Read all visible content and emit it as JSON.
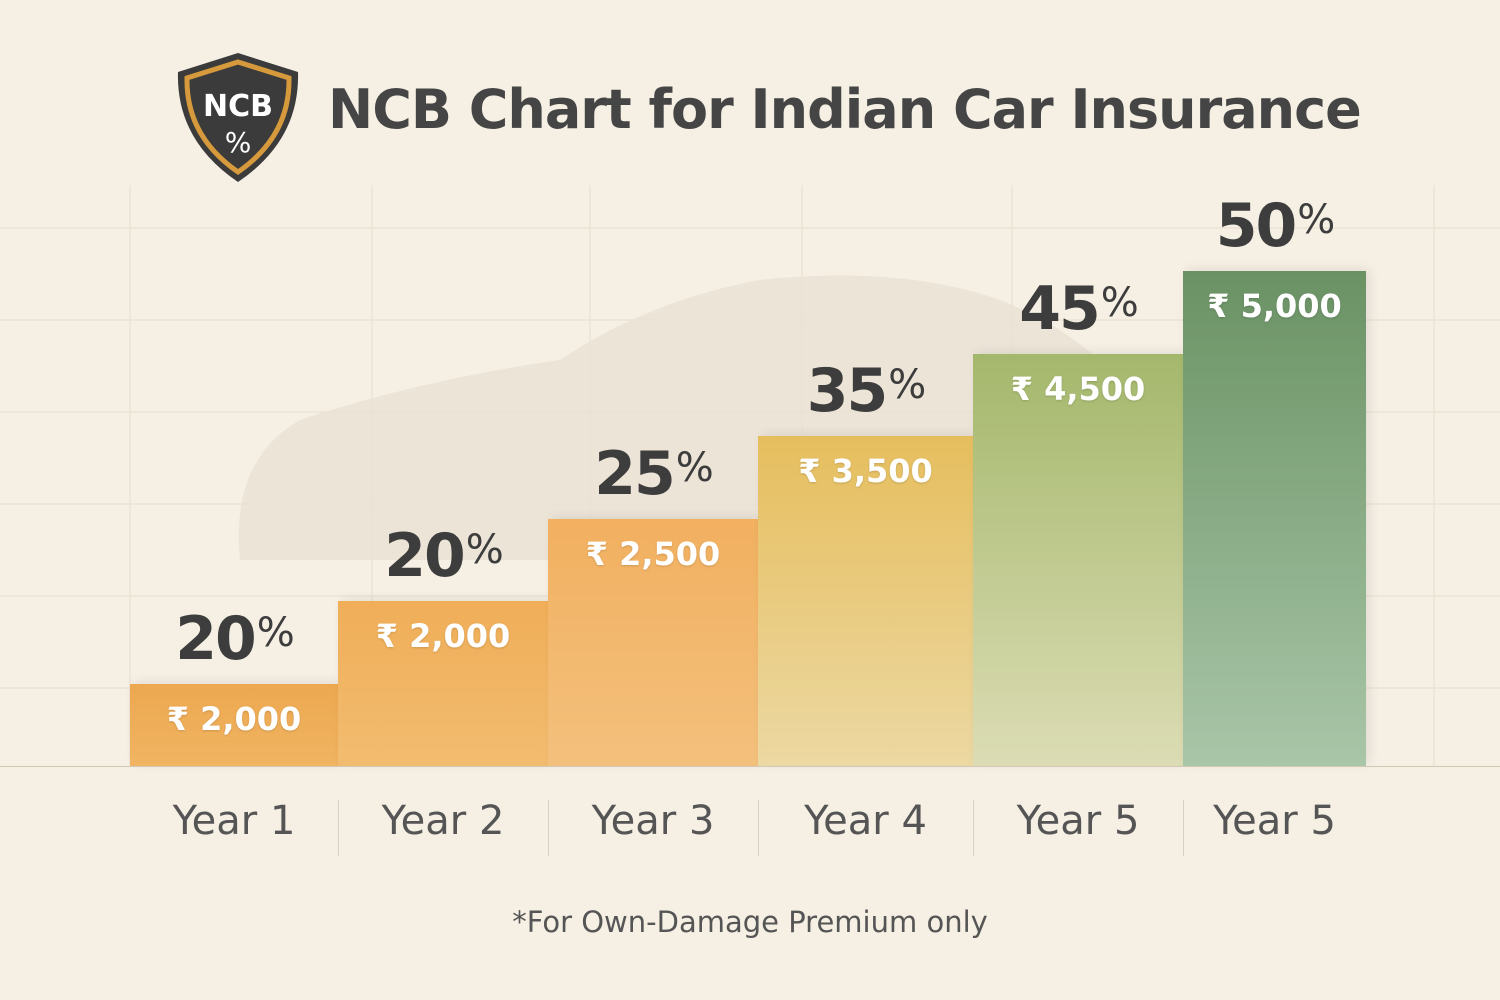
{
  "title": "NCB Chart for Indian Car Insurance",
  "logo": {
    "line1": "NCB",
    "line2": "%",
    "icon": "shield-icon"
  },
  "footnote": "*For Own-Damage Premium only",
  "colors": {
    "text": "#3d3d3d",
    "bars": [
      [
        "#eda850",
        "#f0b462"
      ],
      [
        "#f0ae58",
        "#f2bc70"
      ],
      [
        "#f2b060",
        "#f3c07c"
      ],
      [
        "#e6be5e",
        "#ecd8a2"
      ],
      [
        "#a4b86c",
        "#dcdcb4"
      ],
      [
        "#6a9264",
        "#a9c6a8"
      ]
    ]
  },
  "chart_data": {
    "type": "bar",
    "title": "NCB Chart for Indian Car Insurance",
    "categories": [
      "Year 1",
      "Year 2",
      "Year 3",
      "Year 4",
      "Year 5",
      "Year 5"
    ],
    "series": [
      {
        "name": "NCB %",
        "values": [
          20,
          20,
          25,
          35,
          45,
          50
        ]
      },
      {
        "name": "Amount (₹)",
        "values": [
          2000,
          2000,
          2500,
          3500,
          4500,
          5000
        ]
      }
    ],
    "percent_labels": [
      "20",
      "20",
      "25",
      "35",
      "45",
      "50"
    ],
    "percent_symbol": "%",
    "amount_labels": [
      "₹ 2,000",
      "₹ 2,000",
      "₹ 2,500",
      "₹ 3,500",
      "₹ 4,500",
      "₹ 5,000"
    ],
    "grid": true,
    "legend": "none"
  }
}
